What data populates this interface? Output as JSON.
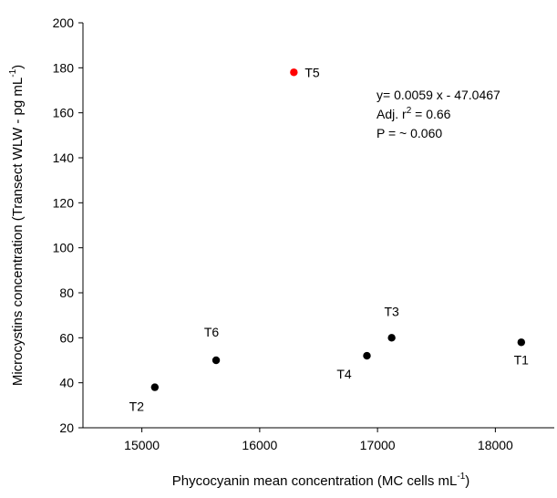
{
  "chart_data": {
    "type": "scatter",
    "title": "",
    "xlabel": "Phycocyanin mean concentration (MC cells mL",
    "xlabel_sup": "-1",
    "xlabel_end": ")",
    "ylabel": "Microcystins concentration (Transect WLW - pg mL",
    "ylabel_sup": "-1",
    "ylabel_end": ")",
    "xlim": [
      14500,
      18500
    ],
    "ylim": [
      20,
      200
    ],
    "x_ticks": [
      15000,
      16000,
      17000,
      18000
    ],
    "x_tick_labels": [
      "15000",
      "16000",
      "17000",
      "18000"
    ],
    "y_ticks": [
      20,
      40,
      60,
      80,
      100,
      120,
      140,
      160,
      180,
      200
    ],
    "y_tick_labels": [
      "20",
      "40",
      "60",
      "80",
      "100",
      "120",
      "140",
      "160",
      "180",
      "200"
    ],
    "grid": false,
    "points": [
      {
        "label": "T1",
        "x": 18220,
        "y": 58,
        "color": "#000000"
      },
      {
        "label": "T2",
        "x": 15110,
        "y": 38,
        "color": "#000000"
      },
      {
        "label": "T3",
        "x": 17120,
        "y": 60,
        "color": "#000000"
      },
      {
        "label": "T4",
        "x": 16910,
        "y": 52,
        "color": "#000000"
      },
      {
        "label": "T5",
        "x": 16290,
        "y": 178,
        "color": "#ff0000"
      },
      {
        "label": "T6",
        "x": 15630,
        "y": 50,
        "color": "#000000"
      }
    ],
    "annotations": {
      "equation": "y= 0.0059 x - 47.0467",
      "adj_r2_prefix": "Adj. r",
      "adj_r2_sup": "2",
      "adj_r2_suffix": " = 0.66",
      "p_value": "P = ~ 0.060"
    }
  }
}
